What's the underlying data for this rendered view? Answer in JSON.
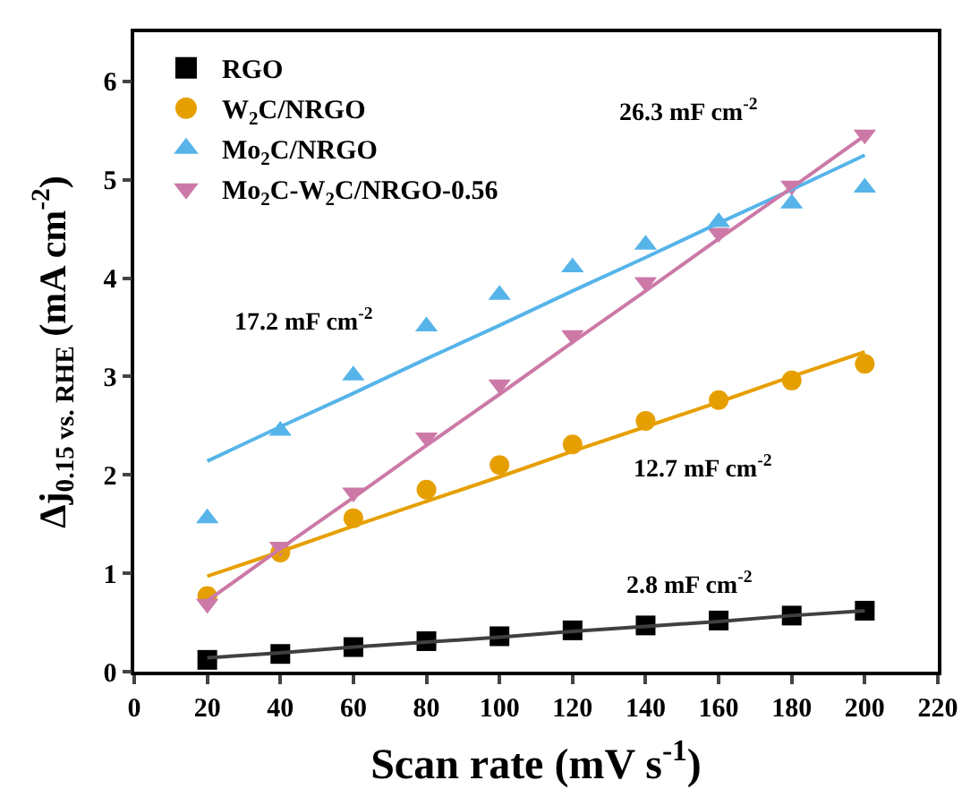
{
  "chart_data": {
    "type": "scatter",
    "xlabel": "Scan rate (mV s$^{-1}$)",
    "ylabel": "Δj$_{0.15 vs. RHE}$ (mA cm$^{-2}$)",
    "x": [
      20,
      40,
      60,
      80,
      100,
      120,
      140,
      160,
      180,
      200
    ],
    "xlim": [
      0,
      220
    ],
    "xticks": [
      0,
      20,
      40,
      60,
      80,
      100,
      120,
      140,
      160,
      180,
      200,
      220
    ],
    "ylim": [
      0,
      6.5
    ],
    "yticks": [
      0,
      1,
      2,
      3,
      4,
      5,
      6
    ],
    "legend": "top left",
    "series": [
      {
        "name": "RGO",
        "marker": "square",
        "color": "#000000",
        "values": [
          0.12,
          0.18,
          0.25,
          0.31,
          0.36,
          0.42,
          0.47,
          0.52,
          0.57,
          0.62
        ]
      },
      {
        "name": "W$_{2}$C/NRGO",
        "marker": "circle",
        "color": "#e69f00",
        "values": [
          0.77,
          1.21,
          1.56,
          1.85,
          2.1,
          2.31,
          2.55,
          2.76,
          2.96,
          3.13
        ]
      },
      {
        "name": "Mo$_{2}$C/NRGO",
        "marker": "triangle",
        "color": "#56b4e9",
        "values": [
          1.56,
          2.45,
          3.01,
          3.51,
          3.83,
          4.11,
          4.34,
          4.57,
          4.76,
          4.92
        ]
      },
      {
        "name": "Mo$_{2}$C-W$_{2}$C/NRGO-0.56",
        "marker": "triangle-down",
        "color": "#cc79a7",
        "values": [
          0.69,
          1.27,
          1.82,
          2.38,
          2.92,
          3.42,
          3.96,
          4.46,
          4.94,
          5.46
        ]
      },
      {
        "type": "line",
        "marker": "none",
        "color": "#404040",
        "values": [
          0.14,
          0.19,
          0.25,
          0.3,
          0.35,
          0.41,
          0.46,
          0.51,
          0.57,
          0.62
        ]
      },
      {
        "type": "line",
        "marker": "none",
        "color": "#e69f00",
        "values": [
          0.97,
          1.22,
          1.48,
          1.73,
          1.98,
          2.24,
          2.49,
          2.74,
          3.0,
          3.25
        ]
      },
      {
        "type": "line",
        "marker": "none",
        "color": "#56b4e9",
        "values": [
          2.14,
          2.49,
          2.83,
          3.18,
          3.52,
          3.87,
          4.21,
          4.56,
          4.9,
          5.25
        ]
      },
      {
        "type": "line",
        "marker": "none",
        "color": "#cc79a7",
        "values": [
          0.72,
          1.25,
          1.77,
          2.3,
          2.82,
          3.35,
          3.87,
          4.4,
          4.92,
          5.45
        ]
      }
    ],
    "annotations": [
      "17.2 mF cm$^{-2}$",
      "26.3 mF cm$^{-2}$",
      "12.7 mF cm$^{-2}$",
      "2.8 mF cm$^{-2}$"
    ]
  }
}
